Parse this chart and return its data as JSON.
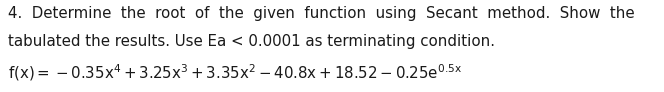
{
  "line1": "4.  Determine  the  root  of  the  given  function  using  Secant  method.  Show  the",
  "line2": "tabulated the results. Use Ea < 0.0001 as terminating condition.",
  "background_color": "#ffffff",
  "text_color": "#1a1a1a",
  "font_size": 10.8,
  "fig_width": 6.64,
  "fig_height": 0.92,
  "dpi": 100
}
